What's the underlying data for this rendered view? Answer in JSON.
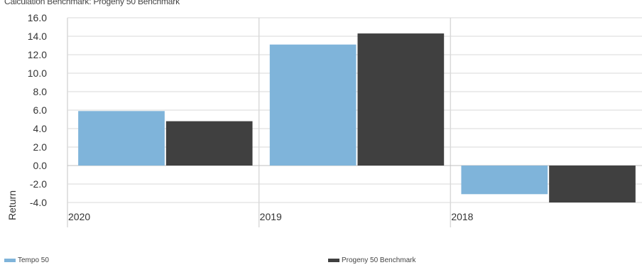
{
  "subtitle": "Calculation Benchmark: Progeny 50 Benchmark",
  "chart_data": {
    "type": "bar",
    "categories": [
      "2020",
      "2019",
      "2018"
    ],
    "series": [
      {
        "name": "Tempo 50",
        "values": [
          5.9,
          13.1,
          -3.1
        ],
        "color": "#7fb4da"
      },
      {
        "name": "Progeny 50 Benchmark",
        "values": [
          4.8,
          14.3,
          -4.0
        ],
        "color": "#404040"
      }
    ],
    "ylabel": "Return",
    "xlabel": "",
    "ylim": [
      -4.0,
      16.0
    ],
    "yticks": [
      "16.0",
      "14.0",
      "12.0",
      "10.0",
      "8.0",
      "6.0",
      "4.0",
      "2.0",
      "0.0",
      "-2.0",
      "-4.0"
    ],
    "grid": true,
    "legend_position": "bottom"
  }
}
